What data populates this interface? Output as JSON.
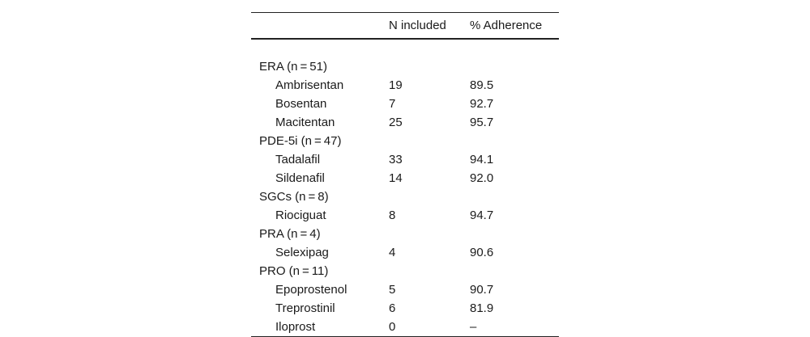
{
  "table": {
    "headers": [
      "",
      "N included",
      "% Adherence"
    ],
    "rows": [
      {
        "type": "group",
        "name": "ERA (n = 51)",
        "n": "",
        "pct": ""
      },
      {
        "type": "drug",
        "name": "Ambrisentan",
        "n": "19",
        "pct": "89.5"
      },
      {
        "type": "drug",
        "name": "Bosentan",
        "n": "7",
        "pct": "92.7"
      },
      {
        "type": "drug",
        "name": "Macitentan",
        "n": "25",
        "pct": "95.7"
      },
      {
        "type": "group",
        "name": "PDE-5i (n = 47)",
        "n": "",
        "pct": ""
      },
      {
        "type": "drug",
        "name": "Tadalafil",
        "n": "33",
        "pct": "94.1"
      },
      {
        "type": "drug",
        "name": "Sildenafil",
        "n": "14",
        "pct": "92.0"
      },
      {
        "type": "group",
        "name": "SGCs (n = 8)",
        "n": "",
        "pct": ""
      },
      {
        "type": "drug",
        "name": "Riociguat",
        "n": "8",
        "pct": "94.7"
      },
      {
        "type": "group",
        "name": "PRA (n = 4)",
        "n": "",
        "pct": ""
      },
      {
        "type": "drug",
        "name": "Selexipag",
        "n": "4",
        "pct": "90.6"
      },
      {
        "type": "group",
        "name": "PRO (n = 11)",
        "n": "",
        "pct": ""
      },
      {
        "type": "drug",
        "name": "Epoprostenol",
        "n": "5",
        "pct": "90.7"
      },
      {
        "type": "drug",
        "name": "Treprostinil",
        "n": "6",
        "pct": "81.9"
      },
      {
        "type": "drug",
        "name": "Iloprost",
        "n": "0",
        "pct": "–"
      }
    ]
  }
}
